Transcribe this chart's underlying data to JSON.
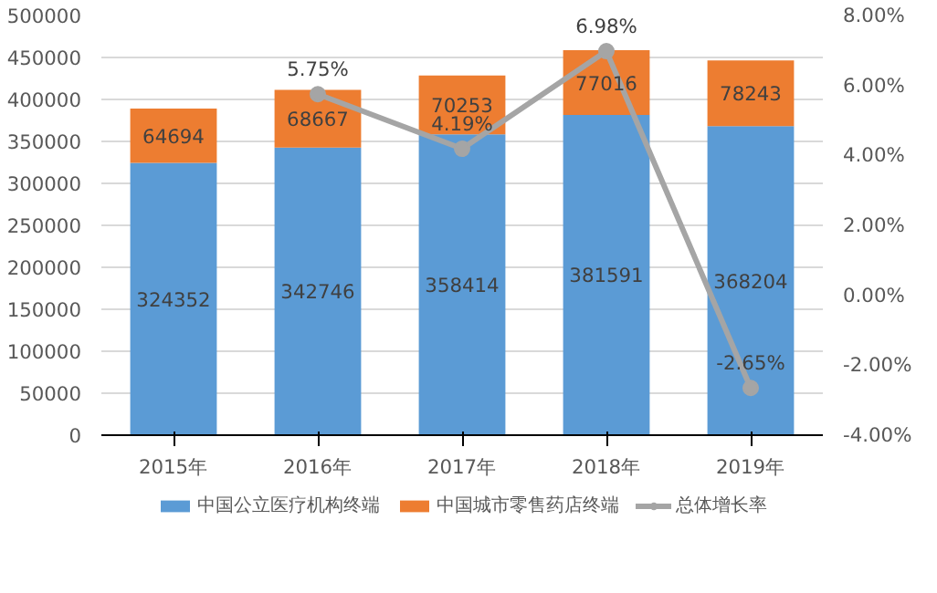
{
  "chart_data": {
    "type": "bar",
    "stacked": true,
    "categories": [
      "2015年",
      "2016年",
      "2017年",
      "2018年",
      "2019年"
    ],
    "series": [
      {
        "name": "中国公立医疗机构终端",
        "color": "#5b9bd5",
        "values": [
          324352,
          342746,
          358414,
          381591,
          368204
        ]
      },
      {
        "name": "中国城市零售药店终端",
        "color": "#ed7d31",
        "values": [
          64694,
          68667,
          70253,
          77016,
          78243
        ]
      },
      {
        "name": "总体增长率",
        "type": "line",
        "axis": "y2",
        "color": "#a5a5a5",
        "marker": "circle",
        "values": [
          null,
          5.75,
          4.19,
          6.98,
          -2.65
        ],
        "value_labels": [
          null,
          "5.75%",
          "4.19%",
          "6.98%",
          "-2.65%"
        ]
      }
    ],
    "data_labels": true,
    "ylim": [
      0,
      500000
    ],
    "yticks": [
      0,
      50000,
      100000,
      150000,
      200000,
      250000,
      300000,
      350000,
      400000,
      450000,
      500000
    ],
    "y2lim": [
      -4,
      8
    ],
    "y2ticks": [
      {
        "value": -4,
        "label": "-4.00%"
      },
      {
        "value": -2,
        "label": "-2.00%"
      },
      {
        "value": 0,
        "label": "0.00%"
      },
      {
        "value": 2,
        "label": "2.00%"
      },
      {
        "value": 4,
        "label": "4.00%"
      },
      {
        "value": 6,
        "label": "6.00%"
      },
      {
        "value": 8,
        "label": "8.00%"
      }
    ],
    "grid": "y",
    "legend": "bottom"
  }
}
